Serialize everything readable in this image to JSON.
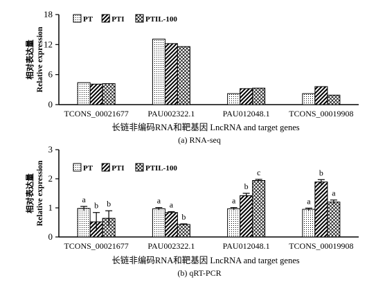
{
  "chart_data": [
    {
      "type": "bar",
      "caption": "(a) RNA-seq",
      "ylabel_cn": "相对表达量",
      "ylabel_en": "Relative expression",
      "xlabel": "长链非编码RNA和靶基因 LncRNA and target genes",
      "ylim": [
        0,
        18
      ],
      "yticks": [
        0,
        6,
        12,
        18
      ],
      "legend_position": "top-left",
      "categories": [
        "TCONS_00021677",
        "PAU002322.1",
        "PAU012048.1",
        "TCONS_00019908"
      ],
      "series": [
        {
          "name": "PT",
          "values": [
            4.4,
            13.1,
            2.2,
            2.2
          ]
        },
        {
          "name": "PTI",
          "values": [
            4.1,
            12.2,
            3.2,
            3.6
          ]
        },
        {
          "name": "PTIL-100",
          "values": [
            4.2,
            11.6,
            3.3,
            1.9
          ]
        }
      ]
    },
    {
      "type": "bar",
      "caption": "(b) qRT-PCR",
      "ylabel_cn": "相对表达量",
      "ylabel_en": "Relative expression",
      "xlabel": "长链非编码RNA和靶基因 LncRNA and target genes",
      "ylim": [
        0,
        3
      ],
      "yticks": [
        0,
        1,
        2,
        3
      ],
      "legend_position": "top-left",
      "categories": [
        "TCONS_00021677",
        "PAU002322.1",
        "PAU012048.1",
        "TCONS_00019908"
      ],
      "series": [
        {
          "name": "PT",
          "values": [
            0.98,
            0.97,
            0.97,
            0.95
          ],
          "errors": [
            0.07,
            0.04,
            0.04,
            0.04
          ],
          "letters": [
            "a",
            "a",
            "a",
            "a"
          ]
        },
        {
          "name": "PTI",
          "values": [
            0.52,
            0.84,
            1.42,
            1.89
          ],
          "errors": [
            0.32,
            0.03,
            0.08,
            0.08
          ],
          "letters": [
            "b",
            "a",
            "b",
            "b"
          ]
        },
        {
          "name": "PTIL-100",
          "values": [
            0.64,
            0.43,
            1.94,
            1.2
          ],
          "errors": [
            0.26,
            0.02,
            0.04,
            0.07
          ],
          "letters": [
            "b",
            "b",
            "c",
            "a"
          ]
        }
      ]
    }
  ]
}
